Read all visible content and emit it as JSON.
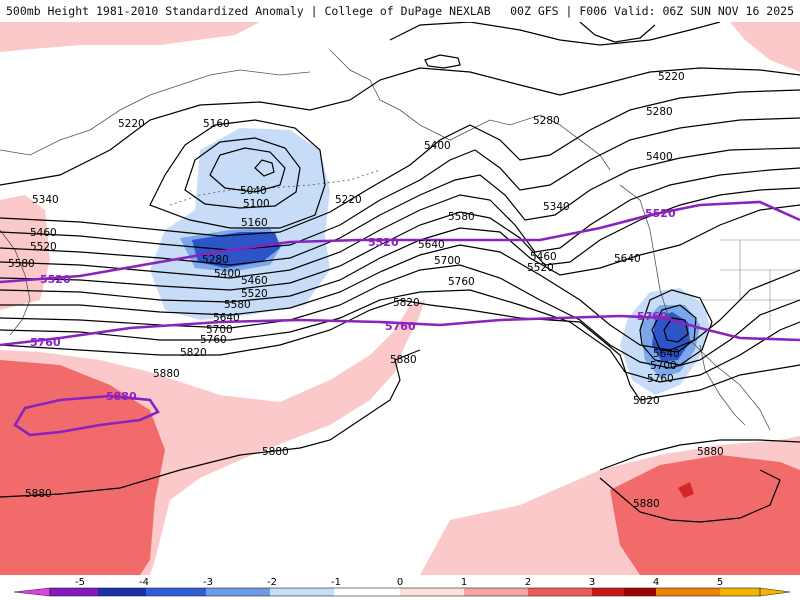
{
  "header": {
    "left_title": "500mb Height 1981-2010 Standardized Anomaly | College of DuPage NEXLAB",
    "right_title": "00Z GFS | F006 Valid: 06Z SUN NOV 16 2025"
  },
  "colors": {
    "ocean": "#ffffff",
    "anom_pos_1": "#fbc9c9",
    "anom_pos_2": "#f26b6b",
    "anom_pos_3": "#d2282c",
    "anom_neg_1": "#c7ddf7",
    "anom_neg_2": "#7aa8ea",
    "anom_neg_3": "#2d55c8",
    "contour": "#000000",
    "highlight_contour": "#8a22c0"
  },
  "legend": {
    "ticks": [
      "-5",
      "-4",
      "-3",
      "-2",
      "-1",
      "0",
      "1",
      "2",
      "3",
      "4",
      "5"
    ],
    "bins": [
      "#e040e0",
      "#8a18c0",
      "#1a2fa8",
      "#2f5fd8",
      "#6f9be6",
      "#c6ddf7",
      "#ffffff",
      "#fde0e0",
      "#f6a5a5",
      "#ee5a5a",
      "#cc1515",
      "#a00000",
      "#f08000",
      "#f5b300"
    ]
  },
  "contour_labels": [
    {
      "text": "5220"
    },
    {
      "text": "5160"
    },
    {
      "text": "5040"
    },
    {
      "text": "5100"
    },
    {
      "text": "5160"
    },
    {
      "text": "5220"
    },
    {
      "text": "5280"
    },
    {
      "text": "5400"
    },
    {
      "text": "5460"
    },
    {
      "text": "5520"
    },
    {
      "text": "5580"
    },
    {
      "text": "5640"
    },
    {
      "text": "5700"
    },
    {
      "text": "5760"
    },
    {
      "text": "5820"
    },
    {
      "text": "5880"
    },
    {
      "text": "5340"
    },
    {
      "text": "5460"
    },
    {
      "text": "5520"
    },
    {
      "text": "5580"
    },
    {
      "text": "5400"
    },
    {
      "text": "5280"
    },
    {
      "text": "5340"
    },
    {
      "text": "5580"
    },
    {
      "text": "5640"
    },
    {
      "text": "5700"
    },
    {
      "text": "5760"
    },
    {
      "text": "5820"
    },
    {
      "text": "5460"
    },
    {
      "text": "5520"
    },
    {
      "text": "5220"
    },
    {
      "text": "5280"
    },
    {
      "text": "5400"
    },
    {
      "text": "5640"
    },
    {
      "text": "5640"
    },
    {
      "text": "5700"
    },
    {
      "text": "5760"
    },
    {
      "text": "5820"
    },
    {
      "text": "5880"
    },
    {
      "text": "5880"
    },
    {
      "text": "5880"
    },
    {
      "text": "5880"
    },
    {
      "text": "5880"
    }
  ],
  "highlight_labels": [
    {
      "text": "5520"
    },
    {
      "text": "5520"
    },
    {
      "text": "5520"
    },
    {
      "text": "5760"
    },
    {
      "text": "5760"
    },
    {
      "text": "5760"
    },
    {
      "text": "5880"
    }
  ]
}
